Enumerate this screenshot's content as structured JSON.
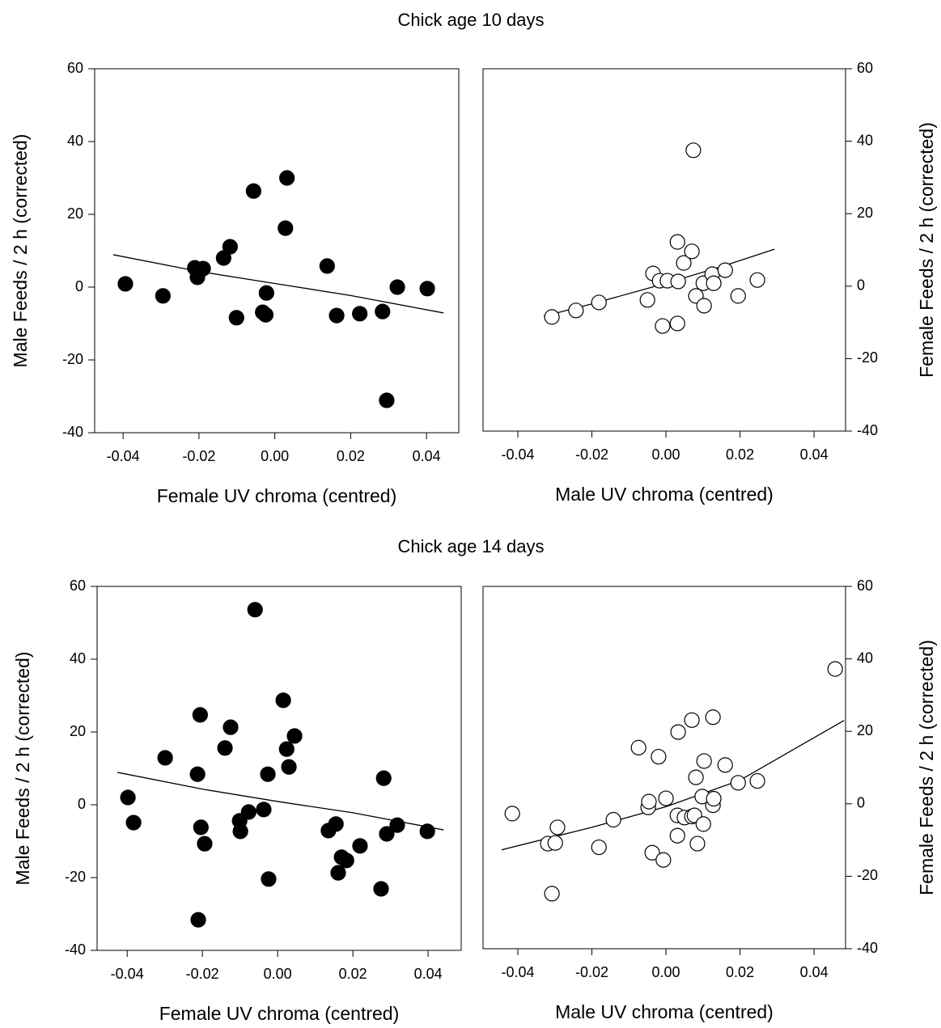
{
  "chart_data": [
    {
      "type": "scatter",
      "title": "Chick age 10 days",
      "xlabel": "Female UV chroma (centred)",
      "ylabel": "Male Feeds / 2 h (corrected)",
      "y_axis_side": "left",
      "filled": true,
      "xlim": [
        -0.0475,
        0.0485
      ],
      "ylim": [
        -40,
        60
      ],
      "xticks": [
        -0.04,
        -0.02,
        {
          "value": 0,
          "label": "0.00"
        },
        0.02,
        0.04
      ],
      "yticks": [
        -40,
        -20,
        0,
        20,
        40,
        60
      ],
      "x": [
        -0.0394,
        -0.0295,
        -0.0211,
        -0.0189,
        -0.0204,
        -0.0135,
        -0.0118,
        -0.0101,
        -0.0056,
        -0.0032,
        -0.0024,
        -0.0022,
        0.0028,
        0.0032,
        0.0138,
        0.0163,
        0.0224,
        0.0284,
        0.0295,
        0.0323,
        0.0402
      ],
      "values": [
        0.9,
        -2.4,
        5.3,
        5.1,
        2.7,
        8.0,
        11.1,
        -8.4,
        26.4,
        -6.9,
        -7.6,
        -1.6,
        16.2,
        30,
        5.8,
        -7.8,
        -7.3,
        -6.7,
        -31.1,
        0,
        -0.4
      ],
      "fit": {
        "x": [
          -0.0426,
          -0.02,
          0,
          0.02,
          0.0445
        ],
        "values": [
          8.9,
          4.3,
          1,
          -2.3,
          -7.1
        ]
      }
    },
    {
      "type": "scatter",
      "xlabel": "Male UV chroma (centred)",
      "ylabel": "Female Feeds / 2 h (corrected)",
      "y_axis_side": "right",
      "filled": false,
      "xlim": [
        -0.0494,
        0.0485
      ],
      "ylim": [
        -40,
        60
      ],
      "xticks": [
        -0.04,
        -0.02,
        {
          "value": 0,
          "label": "0.00"
        },
        0.02,
        0.04
      ],
      "yticks": [
        -40,
        -20,
        0,
        20,
        40,
        60
      ],
      "x": [
        -0.0308,
        -0.0243,
        -0.0181,
        -0.005,
        -0.0035,
        -0.0017,
        0.0004,
        0.0033,
        0.0031,
        0.0048,
        0.007,
        0.0074,
        0.0081,
        0.0101,
        0.0103,
        0.0125,
        0.0129,
        0.016,
        0.0195,
        0.0247,
        -0.0009,
        0.0031
      ],
      "values": [
        -8.5,
        -6.7,
        -4.5,
        -3.8,
        3.5,
        1.5,
        1.5,
        1.3,
        12.2,
        6.4,
        9.6,
        37.5,
        -2.7,
        0.8,
        -5.4,
        3.3,
        0.8,
        4.4,
        -2.7,
        1.7,
        -11,
        -10.3
      ],
      "fit": {
        "x": [
          -0.033,
          -0.02,
          0,
          0.015,
          0.0293
        ],
        "values": [
          -8.3,
          -4.9,
          0.8,
          5.4,
          10.2
        ]
      }
    },
    {
      "type": "scatter",
      "title": "Chick age 14 days",
      "xlabel": "Female UV chroma (centred)",
      "ylabel": "Male Feeds / 2 h (corrected)",
      "y_axis_side": "left",
      "filled": true,
      "xlim": [
        -0.048,
        0.0488
      ],
      "ylim": [
        -40,
        60
      ],
      "xticks": [
        -0.04,
        -0.02,
        {
          "value": 0,
          "label": "0.00"
        },
        0.02,
        0.04
      ],
      "yticks": [
        -40,
        -20,
        0,
        20,
        40,
        60
      ],
      "x": [
        -0.0398,
        -0.0383,
        -0.0299,
        -0.0213,
        -0.0206,
        -0.0204,
        -0.0194,
        -0.0211,
        -0.014,
        -0.0125,
        -0.0101,
        -0.0099,
        -0.0077,
        -0.006,
        -0.0037,
        -0.0024,
        -0.0026,
        0.0015,
        0.0024,
        0.003,
        0.0045,
        0.0135,
        0.0155,
        0.0161,
        0.017,
        0.0183,
        0.0219,
        0.0275,
        0.0282,
        0.029,
        0.0318,
        0.0398
      ],
      "values": [
        2.0,
        -4.9,
        12.9,
        8.4,
        24.7,
        -6.2,
        -10.7,
        -31.6,
        15.6,
        21.3,
        -4.4,
        -7.3,
        -2.0,
        53.6,
        -1.3,
        -20.4,
        8.4,
        28.7,
        15.3,
        10.4,
        18.9,
        -7.1,
        -5.3,
        -18.7,
        -14.4,
        -15.3,
        -11.3,
        -23.1,
        7.3,
        -8.0,
        -5.6,
        -7.3
      ],
      "fit": {
        "x": [
          -0.0426,
          -0.02,
          0,
          0.02,
          0.0441
        ],
        "values": [
          8.9,
          4.3,
          0.9,
          -2.2,
          -6.9
        ]
      }
    },
    {
      "type": "scatter",
      "xlabel": "Male UV chroma (centred)",
      "ylabel": "Female Feeds / 2 h (corrected)",
      "y_axis_side": "right",
      "filled": false,
      "xlim": [
        -0.0494,
        0.0485
      ],
      "ylim": [
        -40,
        60
      ],
      "xticks": [
        -0.04,
        -0.02,
        {
          "value": 0,
          "label": "0.00"
        },
        0.02,
        0.04
      ],
      "yticks": [
        -40,
        -20,
        0,
        20,
        40,
        60
      ],
      "x": [
        -0.0415,
        -0.0293,
        -0.0319,
        -0.0299,
        -0.0308,
        -0.0181,
        -0.0142,
        -0.0074,
        -0.0048,
        -0.0046,
        -0.0037,
        -0.002,
        -0.0007,
        0,
        0.0031,
        0.0031,
        0.0033,
        0.005,
        0.007,
        0.007,
        0.0077,
        0.0081,
        0.0085,
        0.0098,
        0.0101,
        0.0103,
        0.0127,
        0.0127,
        0.0129,
        0.016,
        0.0195,
        0.0247,
        0.0457
      ],
      "values": [
        -2.7,
        -6.5,
        -11.0,
        -10.8,
        -24.8,
        -12.0,
        -4.4,
        15.5,
        -1.0,
        0.6,
        -13.5,
        13.0,
        -15.5,
        1.5,
        -3.2,
        -8.8,
        19.8,
        -3.8,
        23.1,
        -3.5,
        -3.2,
        7.3,
        -11.0,
        2.0,
        -5.6,
        11.8,
        23.9,
        -0.4,
        1.4,
        10.7,
        5.8,
        6.3,
        37.2
      ],
      "fit": {
        "x": [
          -0.0444,
          -0.02,
          0,
          0.02,
          0.0481
        ],
        "values": [
          -12.7,
          -6.5,
          -0.8,
          6.5,
          23.0
        ]
      }
    }
  ]
}
